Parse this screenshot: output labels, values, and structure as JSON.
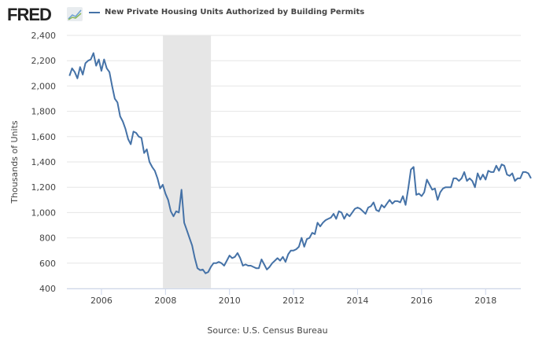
{
  "header": {
    "logo": "FRED",
    "series_label": "New Private Housing Units Authorized by Building Permits"
  },
  "colors": {
    "line": "#4572a7",
    "recession": "#e6e6e6",
    "grid": "#e6e6e6"
  },
  "chart_data": {
    "type": "line",
    "title": "New Private Housing Units Authorized by Building Permits",
    "xlabel": "",
    "ylabel": "Thousands of Units",
    "source": "Source: U.S. Census Bureau",
    "ylim": [
      400,
      2400
    ],
    "yticks": [
      400,
      600,
      800,
      1000,
      1200,
      1400,
      1600,
      1800,
      2000,
      2200,
      2400
    ],
    "ytick_labels": [
      "400",
      "600",
      "800",
      "1,000",
      "1,200",
      "1,400",
      "1,600",
      "1,800",
      "2,000",
      "2,200",
      "2,400"
    ],
    "xticks": [
      2006,
      2008,
      2010,
      2012,
      2014,
      2016,
      2018
    ],
    "xtick_labels": [
      "2006",
      "2008",
      "2010",
      "2012",
      "2014",
      "2016",
      "2018"
    ],
    "xlim": [
      2004.92,
      2019.1
    ],
    "start": 2005.0,
    "frequency": "monthly",
    "recession": [
      2007.92,
      2009.42
    ],
    "grid": true,
    "series": [
      {
        "name": "New Private Housing Units Authorized by Building Permits",
        "values": [
          2080,
          2140,
          2110,
          2060,
          2150,
          2090,
          2180,
          2200,
          2210,
          2260,
          2160,
          2210,
          2120,
          2210,
          2140,
          2110,
          2000,
          1900,
          1870,
          1760,
          1720,
          1660,
          1580,
          1540,
          1640,
          1630,
          1600,
          1590,
          1470,
          1500,
          1400,
          1360,
          1330,
          1270,
          1190,
          1220,
          1150,
          1100,
          1010,
          970,
          1010,
          1000,
          1180,
          920,
          860,
          800,
          740,
          640,
          560,
          545,
          550,
          520,
          530,
          570,
          600,
          600,
          610,
          600,
          580,
          620,
          660,
          640,
          650,
          680,
          640,
          580,
          590,
          580,
          580,
          570,
          560,
          560,
          630,
          590,
          550,
          570,
          600,
          620,
          640,
          620,
          650,
          610,
          670,
          700,
          700,
          710,
          730,
          800,
          730,
          790,
          800,
          840,
          830,
          920,
          890,
          920,
          940,
          950,
          960,
          990,
          950,
          1010,
          1000,
          950,
          990,
          970,
          1000,
          1030,
          1040,
          1030,
          1010,
          990,
          1040,
          1050,
          1080,
          1020,
          1010,
          1060,
          1040,
          1070,
          1100,
          1070,
          1090,
          1090,
          1080,
          1130,
          1060,
          1190,
          1340,
          1360,
          1140,
          1150,
          1130,
          1160,
          1260,
          1220,
          1180,
          1190,
          1100,
          1160,
          1190,
          1200,
          1200,
          1200,
          1270,
          1270,
          1250,
          1270,
          1320,
          1250,
          1270,
          1250,
          1200,
          1310,
          1260,
          1300,
          1260,
          1330,
          1320,
          1320,
          1370,
          1330,
          1380,
          1370,
          1300,
          1290,
          1310,
          1250,
          1270,
          1270,
          1320,
          1320,
          1310,
          1270
        ]
      }
    ]
  }
}
